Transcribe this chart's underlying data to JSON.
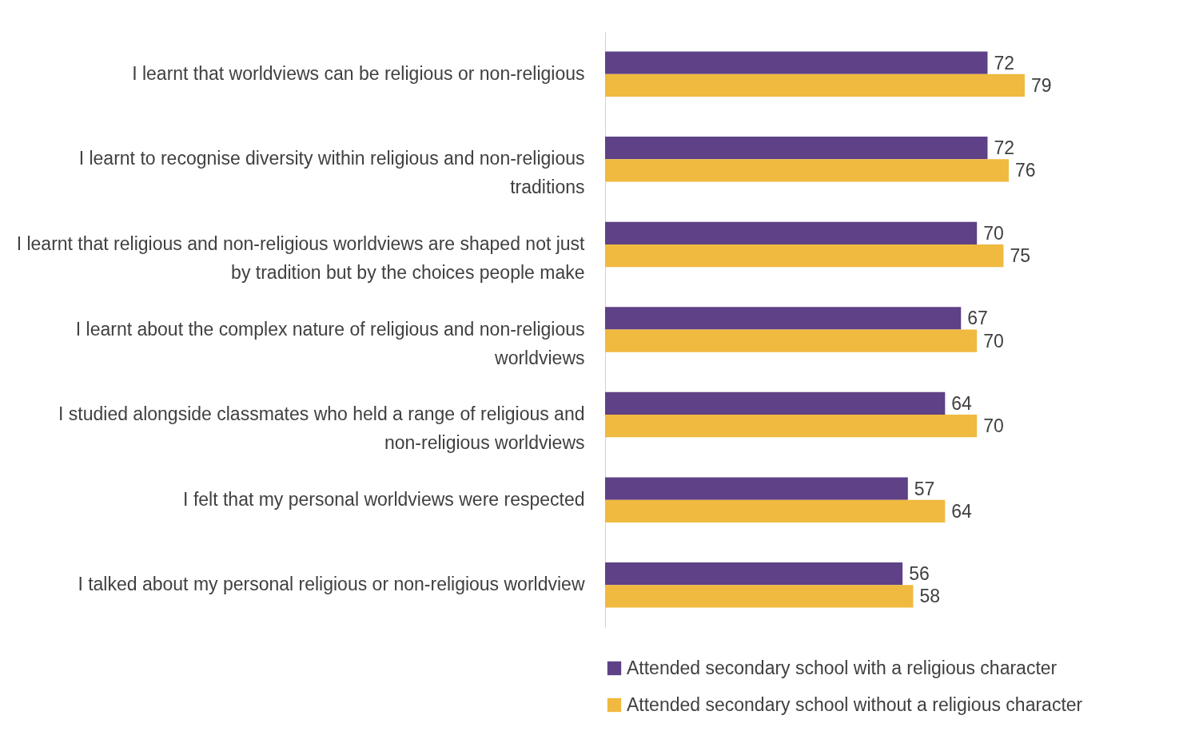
{
  "chart_data": {
    "type": "bar",
    "orientation": "horizontal",
    "data_labels": true,
    "legend": "bottom",
    "grid": false,
    "categories": [
      "I learnt that worldviews can be religious or non-religious",
      "I learnt to recognise diversity within religious and non-religious traditions",
      "I learnt that religious and non-religious worldviews are shaped not just by tradition but by the choices people make",
      "I learnt about the complex nature of religious and non-religious worldviews",
      "I studied alongside classmates who held a range of religious and non-religious worldviews",
      "I felt that my personal worldviews were respected",
      "I talked about my personal religious or non-religious worldview"
    ],
    "series": [
      {
        "name": "Attended secondary school with a religious character",
        "color": "#5e4186",
        "values": [
          72,
          72,
          70,
          67,
          64,
          57,
          56
        ]
      },
      {
        "name": "Attended secondary school without a religious character",
        "color": "#f0b93f",
        "values": [
          79,
          76,
          75,
          70,
          70,
          64,
          58
        ]
      }
    ]
  }
}
